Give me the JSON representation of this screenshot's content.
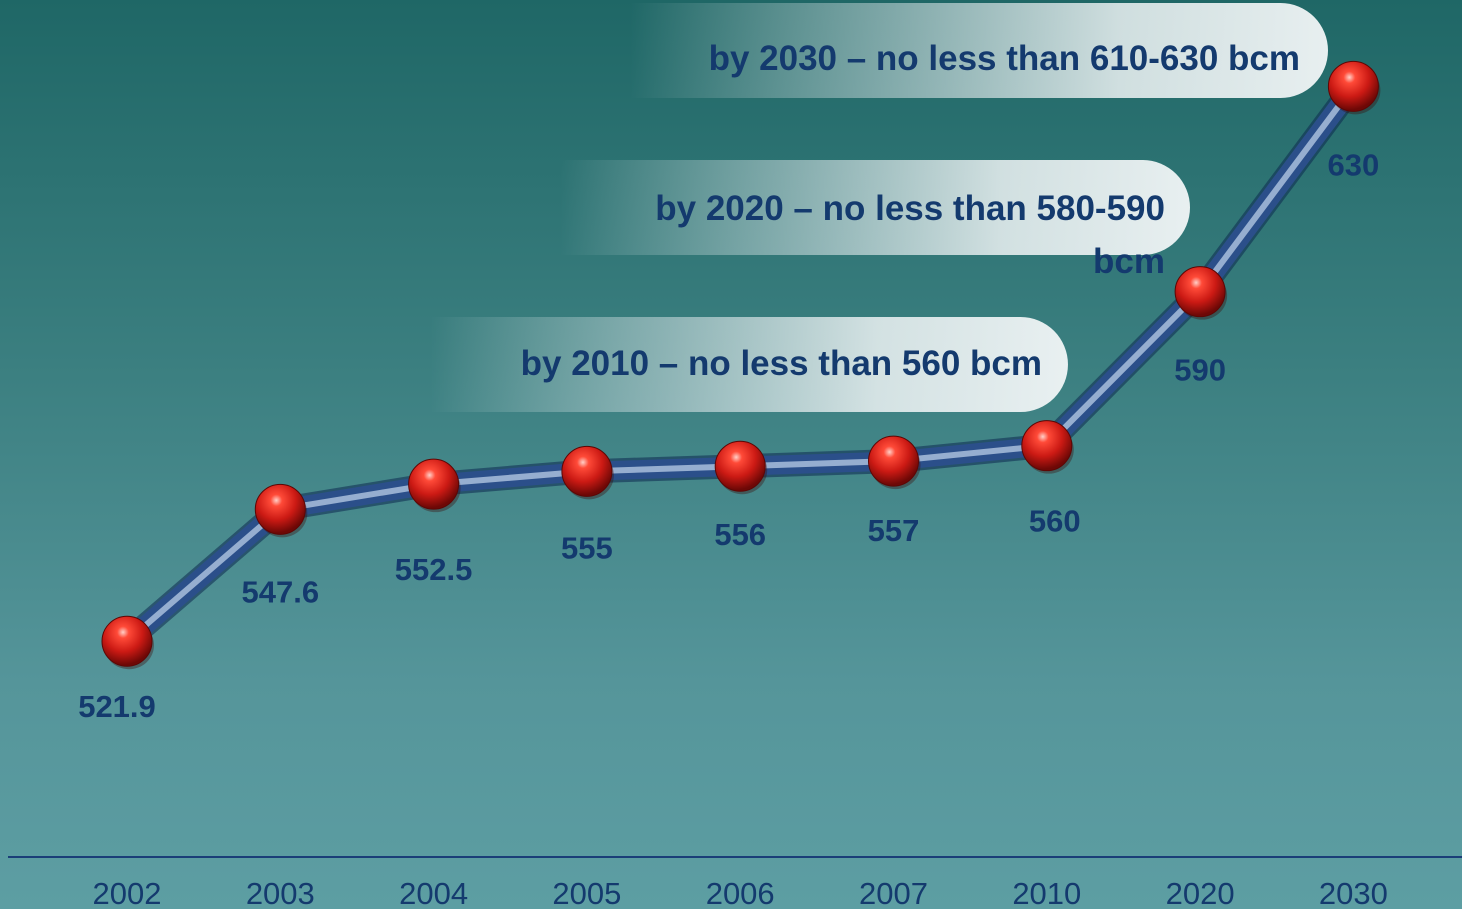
{
  "chart_data": {
    "type": "line",
    "categories": [
      "2002",
      "2003",
      "2004",
      "2005",
      "2006",
      "2007",
      "2010",
      "2020",
      "2030"
    ],
    "values": [
      521.9,
      547.6,
      552.5,
      555,
      556,
      557,
      560,
      590,
      630
    ],
    "value_labels": [
      "521.9",
      "547.6",
      "552.5",
      "555",
      "556",
      "557",
      "560",
      "590",
      "630"
    ],
    "title": "",
    "xlabel": "",
    "ylabel": "",
    "ylim": [
      490,
      640
    ],
    "grid": false,
    "legend": "none",
    "annotations": [
      {
        "lines": [
          "by 2030 – no less than 610-630 bcm"
        ],
        "target": "2030"
      },
      {
        "lines": [
          "by 2020 – no less than 580-590",
          "bcm"
        ],
        "target": "2020"
      },
      {
        "lines": [
          "by 2010 – no less than 560 bcm"
        ],
        "target": "2010"
      }
    ]
  },
  "colors": {
    "background_top": "#1f6766",
    "background_bottom": "#5d9ea3",
    "line": "#2b4f8a",
    "marker": "#cc1a14",
    "text": "#143a6e",
    "axis": "#1a3e78"
  }
}
